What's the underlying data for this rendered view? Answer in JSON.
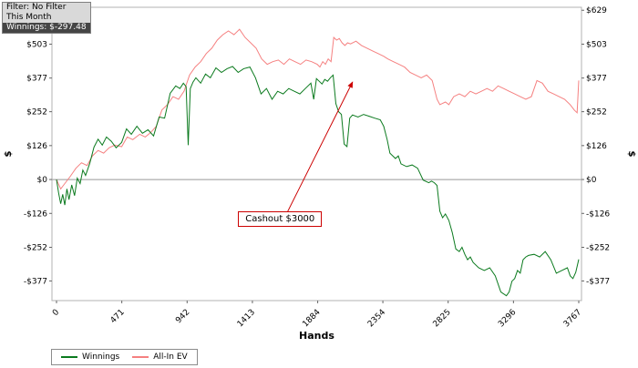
{
  "info_box": {
    "lines": [
      "Filter: No Filter",
      "This Month",
      "Winnings: $-297.48"
    ]
  },
  "chart_data": {
    "type": "line",
    "title": "",
    "xlabel": "Hands",
    "ylabel": "$",
    "ylabel_right": "$",
    "xlim": [
      0,
      3767
    ],
    "ylim": [
      -450,
      640
    ],
    "grid": false,
    "legend_position": "bottom-left",
    "x_ticks": [
      {
        "value": 0,
        "label": "0"
      },
      {
        "value": 471,
        "label": "471"
      },
      {
        "value": 942,
        "label": "942"
      },
      {
        "value": 1413,
        "label": "1413"
      },
      {
        "value": 1884,
        "label": "1884"
      },
      {
        "value": 2354,
        "label": "2354"
      },
      {
        "value": 2825,
        "label": "2825"
      },
      {
        "value": 3296,
        "label": "3296"
      },
      {
        "value": 3767,
        "label": "3767"
      }
    ],
    "y_ticks": [
      {
        "value": 629,
        "label": "$629"
      },
      {
        "value": 503,
        "label": "$503"
      },
      {
        "value": 377,
        "label": "$377"
      },
      {
        "value": 252,
        "label": "$252"
      },
      {
        "value": 126,
        "label": "$126"
      },
      {
        "value": 0,
        "label": "$0"
      },
      {
        "value": -126,
        "label": "-$126"
      },
      {
        "value": -252,
        "label": "-$252"
      },
      {
        "value": -377,
        "label": "-$377"
      }
    ],
    "zero_line": 0,
    "series": [
      {
        "name": "Winnings",
        "color": "#0b7a1e",
        "final_value": -297.48,
        "points": [
          [
            0,
            0
          ],
          [
            15,
            -50
          ],
          [
            30,
            -90
          ],
          [
            45,
            -55
          ],
          [
            60,
            -95
          ],
          [
            75,
            -35
          ],
          [
            90,
            -75
          ],
          [
            110,
            -20
          ],
          [
            130,
            -60
          ],
          [
            150,
            5
          ],
          [
            170,
            -15
          ],
          [
            190,
            35
          ],
          [
            210,
            15
          ],
          [
            240,
            60
          ],
          [
            270,
            120
          ],
          [
            300,
            150
          ],
          [
            330,
            128
          ],
          [
            360,
            158
          ],
          [
            395,
            142
          ],
          [
            430,
            118
          ],
          [
            470,
            138
          ],
          [
            505,
            188
          ],
          [
            540,
            168
          ],
          [
            580,
            198
          ],
          [
            620,
            172
          ],
          [
            660,
            185
          ],
          [
            700,
            162
          ],
          [
            740,
            232
          ],
          [
            780,
            228
          ],
          [
            820,
            320
          ],
          [
            860,
            348
          ],
          [
            890,
            338
          ],
          [
            915,
            358
          ],
          [
            935,
            345
          ],
          [
            950,
            128
          ],
          [
            965,
            338
          ],
          [
            985,
            362
          ],
          [
            1005,
            378
          ],
          [
            1040,
            358
          ],
          [
            1075,
            392
          ],
          [
            1110,
            378
          ],
          [
            1150,
            415
          ],
          [
            1190,
            398
          ],
          [
            1230,
            412
          ],
          [
            1270,
            420
          ],
          [
            1310,
            398
          ],
          [
            1350,
            412
          ],
          [
            1395,
            418
          ],
          [
            1435,
            378
          ],
          [
            1475,
            318
          ],
          [
            1515,
            338
          ],
          [
            1555,
            298
          ],
          [
            1595,
            328
          ],
          [
            1635,
            318
          ],
          [
            1675,
            338
          ],
          [
            1715,
            328
          ],
          [
            1755,
            318
          ],
          [
            1795,
            338
          ],
          [
            1835,
            358
          ],
          [
            1855,
            298
          ],
          [
            1875,
            375
          ],
          [
            1895,
            365
          ],
          [
            1915,
            355
          ],
          [
            1935,
            372
          ],
          [
            1955,
            365
          ],
          [
            1975,
            378
          ],
          [
            1995,
            388
          ],
          [
            2015,
            282
          ],
          [
            2035,
            252
          ],
          [
            2055,
            242
          ],
          [
            2075,
            132
          ],
          [
            2095,
            122
          ],
          [
            2115,
            228
          ],
          [
            2135,
            240
          ],
          [
            2175,
            232
          ],
          [
            2215,
            242
          ],
          [
            2255,
            235
          ],
          [
            2295,
            228
          ],
          [
            2335,
            222
          ],
          [
            2360,
            198
          ],
          [
            2385,
            148
          ],
          [
            2405,
            98
          ],
          [
            2425,
            88
          ],
          [
            2445,
            78
          ],
          [
            2465,
            88
          ],
          [
            2485,
            58
          ],
          [
            2525,
            48
          ],
          [
            2565,
            54
          ],
          [
            2605,
            42
          ],
          [
            2645,
            -2
          ],
          [
            2685,
            -12
          ],
          [
            2705,
            -6
          ],
          [
            2725,
            -12
          ],
          [
            2745,
            -22
          ],
          [
            2765,
            -118
          ],
          [
            2785,
            -142
          ],
          [
            2805,
            -128
          ],
          [
            2830,
            -152
          ],
          [
            2855,
            -198
          ],
          [
            2880,
            -258
          ],
          [
            2905,
            -268
          ],
          [
            2925,
            -252
          ],
          [
            2945,
            -278
          ],
          [
            2965,
            -298
          ],
          [
            2985,
            -288
          ],
          [
            3005,
            -308
          ],
          [
            3045,
            -328
          ],
          [
            3085,
            -338
          ],
          [
            3125,
            -328
          ],
          [
            3165,
            -358
          ],
          [
            3205,
            -418
          ],
          [
            3245,
            -432
          ],
          [
            3265,
            -418
          ],
          [
            3285,
            -378
          ],
          [
            3305,
            -368
          ],
          [
            3325,
            -338
          ],
          [
            3345,
            -348
          ],
          [
            3365,
            -298
          ],
          [
            3385,
            -288
          ],
          [
            3405,
            -282
          ],
          [
            3445,
            -278
          ],
          [
            3485,
            -288
          ],
          [
            3525,
            -268
          ],
          [
            3565,
            -298
          ],
          [
            3605,
            -348
          ],
          [
            3645,
            -338
          ],
          [
            3685,
            -328
          ],
          [
            3705,
            -358
          ],
          [
            3725,
            -368
          ],
          [
            3745,
            -345
          ],
          [
            3767,
            -297
          ]
        ]
      },
      {
        "name": "All-In EV",
        "color": "#f58080",
        "points": [
          [
            0,
            0
          ],
          [
            30,
            -35
          ],
          [
            60,
            -15
          ],
          [
            100,
            12
          ],
          [
            140,
            42
          ],
          [
            180,
            62
          ],
          [
            220,
            52
          ],
          [
            260,
            88
          ],
          [
            300,
            108
          ],
          [
            340,
            98
          ],
          [
            380,
            118
          ],
          [
            420,
            128
          ],
          [
            470,
            122
          ],
          [
            510,
            158
          ],
          [
            550,
            148
          ],
          [
            600,
            168
          ],
          [
            640,
            158
          ],
          [
            680,
            175
          ],
          [
            720,
            198
          ],
          [
            760,
            258
          ],
          [
            800,
            278
          ],
          [
            840,
            308
          ],
          [
            880,
            298
          ],
          [
            920,
            328
          ],
          [
            960,
            388
          ],
          [
            1000,
            418
          ],
          [
            1040,
            438
          ],
          [
            1080,
            468
          ],
          [
            1120,
            488
          ],
          [
            1160,
            518
          ],
          [
            1200,
            538
          ],
          [
            1240,
            552
          ],
          [
            1280,
            538
          ],
          [
            1320,
            558
          ],
          [
            1360,
            528
          ],
          [
            1400,
            508
          ],
          [
            1440,
            488
          ],
          [
            1480,
            448
          ],
          [
            1520,
            428
          ],
          [
            1560,
            438
          ],
          [
            1600,
            444
          ],
          [
            1640,
            428
          ],
          [
            1680,
            448
          ],
          [
            1720,
            438
          ],
          [
            1760,
            428
          ],
          [
            1800,
            444
          ],
          [
            1840,
            438
          ],
          [
            1880,
            428
          ],
          [
            1900,
            418
          ],
          [
            1920,
            438
          ],
          [
            1940,
            428
          ],
          [
            1960,
            448
          ],
          [
            1980,
            438
          ],
          [
            2000,
            528
          ],
          [
            2020,
            518
          ],
          [
            2040,
            524
          ],
          [
            2060,
            508
          ],
          [
            2080,
            498
          ],
          [
            2100,
            508
          ],
          [
            2120,
            504
          ],
          [
            2160,
            514
          ],
          [
            2200,
            498
          ],
          [
            2240,
            488
          ],
          [
            2280,
            478
          ],
          [
            2320,
            468
          ],
          [
            2360,
            458
          ],
          [
            2390,
            448
          ],
          [
            2430,
            438
          ],
          [
            2470,
            428
          ],
          [
            2510,
            418
          ],
          [
            2550,
            398
          ],
          [
            2590,
            388
          ],
          [
            2630,
            378
          ],
          [
            2670,
            388
          ],
          [
            2710,
            368
          ],
          [
            2745,
            298
          ],
          [
            2765,
            278
          ],
          [
            2805,
            288
          ],
          [
            2830,
            278
          ],
          [
            2865,
            308
          ],
          [
            2905,
            318
          ],
          [
            2945,
            308
          ],
          [
            2985,
            328
          ],
          [
            3025,
            318
          ],
          [
            3065,
            328
          ],
          [
            3105,
            338
          ],
          [
            3145,
            328
          ],
          [
            3185,
            348
          ],
          [
            3225,
            338
          ],
          [
            3265,
            328
          ],
          [
            3305,
            318
          ],
          [
            3345,
            308
          ],
          [
            3385,
            298
          ],
          [
            3425,
            308
          ],
          [
            3465,
            368
          ],
          [
            3505,
            358
          ],
          [
            3545,
            328
          ],
          [
            3585,
            318
          ],
          [
            3625,
            308
          ],
          [
            3665,
            298
          ],
          [
            3705,
            278
          ],
          [
            3735,
            258
          ],
          [
            3755,
            248
          ],
          [
            3767,
            368
          ]
        ]
      }
    ],
    "annotation": {
      "label": "Cashout $3000",
      "color": "#cc0000",
      "target_x": 2135,
      "target_y": 372,
      "box_x": 1310,
      "box_y": -118
    }
  },
  "colors": {
    "plot_border": "#b3b3b3",
    "zero_line": "#999999",
    "background": "#ffffff"
  }
}
